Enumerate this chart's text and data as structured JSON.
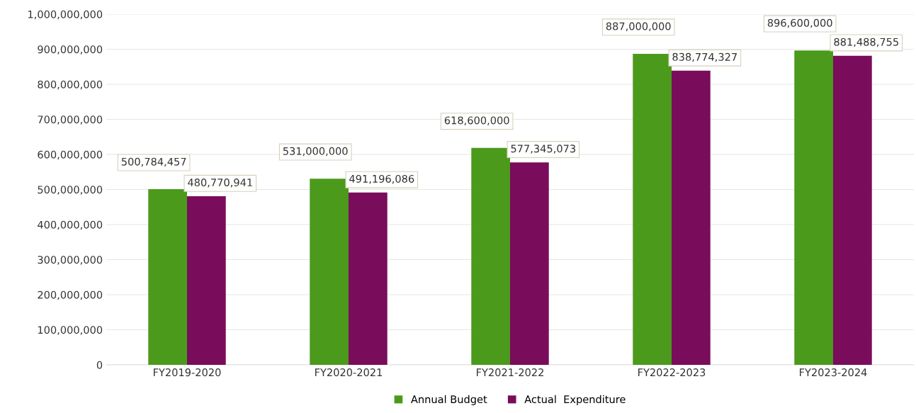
{
  "chart_data": {
    "type": "bar",
    "categories": [
      "FY2019-2020",
      "FY2020-2021",
      "FY2021-2022",
      "FY2022-2023",
      "FY2023-2024"
    ],
    "series": [
      {
        "name": "Annual Budget",
        "color": "#4c9a1c",
        "values": [
          500784457,
          531000000,
          618600000,
          887000000,
          896600000
        ],
        "value_labels": [
          "500,784,457",
          "531,000,000",
          "618,600,000",
          "887,000,000",
          "896,600,000"
        ]
      },
      {
        "name": "Actual  Expenditure",
        "color": "#7a0c5c",
        "values": [
          480770941,
          491196086,
          577345073,
          838774327,
          881488755
        ],
        "value_labels": [
          "480,770,941",
          "491,196,086",
          "577,345,073",
          "838,774,327",
          "881,488,755"
        ]
      }
    ],
    "ylim": [
      0,
      1000000000
    ],
    "yticks": [
      {
        "value": 0,
        "label": "0"
      },
      {
        "value": 100000000,
        "label": "100,000,000"
      },
      {
        "value": 200000000,
        "label": "200,000,000"
      },
      {
        "value": 300000000,
        "label": "300,000,000"
      },
      {
        "value": 400000000,
        "label": "400,000,000"
      },
      {
        "value": 500000000,
        "label": "500,000,000"
      },
      {
        "value": 600000000,
        "label": "600,000,000"
      },
      {
        "value": 700000000,
        "label": "700,000,000"
      },
      {
        "value": 800000000,
        "label": "800,000,000"
      },
      {
        "value": 900000000,
        "label": "900,000,000"
      },
      {
        "value": 1000000000,
        "label": "1,000,000,000"
      }
    ],
    "grid": "y",
    "legend": "bottom"
  }
}
